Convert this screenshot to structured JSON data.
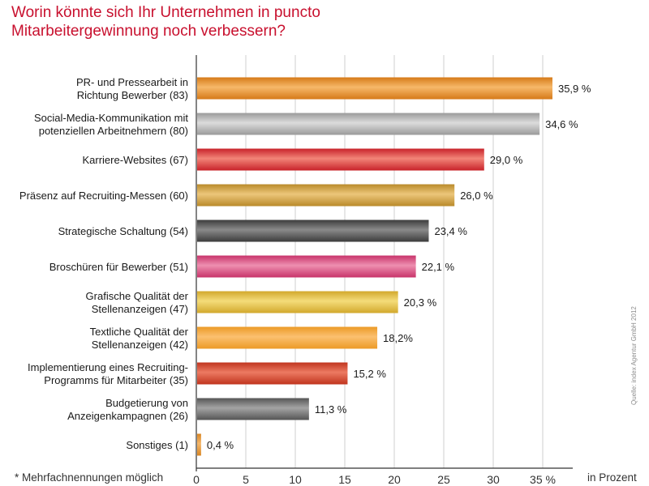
{
  "title_lines": [
    "Worin könnte sich Ihr Unternehmen in puncto",
    "Mitarbeitergewinnung noch verbessern?"
  ],
  "footnote": "* Mehrfachnennungen möglich",
  "unit_label": "in Prozent",
  "source": "Quelle: index Agentur GmbH 2012",
  "chart_data": {
    "type": "bar",
    "orientation": "horizontal",
    "title": "Worin könnte sich Ihr Unternehmen in puncto Mitarbeitergewinnung noch verbessern?",
    "xlabel": "in Prozent",
    "ylabel": "",
    "xlim": [
      0,
      37
    ],
    "x_ticks": [
      "0",
      "5",
      "10",
      "15",
      "20",
      "25",
      "30",
      "35 %"
    ],
    "categories": [
      [
        "PR- und Pressearbeit in",
        "Richtung Bewerber (83)"
      ],
      [
        "Social-Media-Kommunikation mit",
        "potenziellen Arbeitnehmern (80)"
      ],
      [
        "Karriere-Websites (67)"
      ],
      [
        "Präsenz auf Recruiting-Messen (60)"
      ],
      [
        "Strategische Schaltung (54)"
      ],
      [
        "Broschüren für Bewerber (51)"
      ],
      [
        "Grafische Qualität der",
        "Stellenanzeigen (47)"
      ],
      [
        "Textliche Qualität der",
        "Stellenanzeigen (42)"
      ],
      [
        "Implementierung eines Recruiting-",
        "Programms für Mitarbeiter (35)"
      ],
      [
        "Budgetierung von",
        "Anzeigenkampagnen (26)"
      ],
      [
        "Sonstiges (1)"
      ]
    ],
    "values": [
      35.9,
      34.6,
      29.0,
      26.0,
      23.4,
      22.1,
      20.3,
      18.2,
      15.2,
      11.3,
      0.4
    ],
    "value_labels": [
      "35,9 %",
      "34,6 %",
      "29,0 %",
      "26,0 %",
      "23,4 %",
      "22,1 %",
      "20,3 %",
      "18,2%",
      "15,2 %",
      "11,3 %",
      "0,4 %"
    ],
    "bar_colors": [
      [
        "#f6b86a",
        "#d67a18"
      ],
      [
        "#dcdcdc",
        "#9a9a9a"
      ],
      [
        "#f28478",
        "#c8222a"
      ],
      [
        "#ecc67a",
        "#b98a2a"
      ],
      [
        "#8a8a8a",
        "#3c3c3c"
      ],
      [
        "#ee8fb0",
        "#c8336a"
      ],
      [
        "#f4dc7a",
        "#d2a82c"
      ],
      [
        "#fbc070",
        "#ec9a26"
      ],
      [
        "#ec7a62",
        "#c0341e"
      ],
      [
        "#a4a4a4",
        "#555555"
      ],
      [
        "#f4b66a",
        "#d88522"
      ]
    ],
    "grid": true,
    "legend": "none"
  }
}
